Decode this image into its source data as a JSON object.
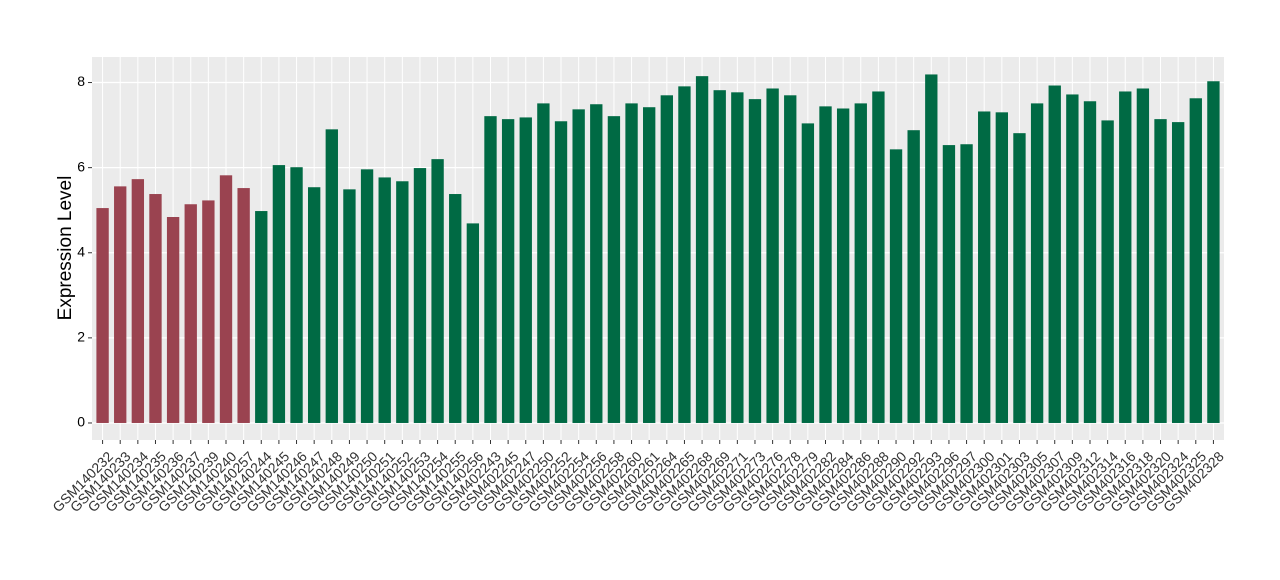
{
  "chart_data": {
    "type": "bar",
    "y_label": "Expression Level",
    "categories": [
      "GSM140232",
      "GSM140233",
      "GSM140234",
      "GSM140235",
      "GSM140236",
      "GSM140237",
      "GSM140239",
      "GSM140240",
      "GSM140257",
      "GSM140244",
      "GSM140245",
      "GSM140246",
      "GSM140247",
      "GSM140248",
      "GSM140249",
      "GSM140250",
      "GSM140251",
      "GSM140252",
      "GSM140253",
      "GSM140254",
      "GSM140255",
      "GSM140256",
      "GSM402243",
      "GSM402245",
      "GSM402247",
      "GSM402250",
      "GSM402252",
      "GSM402254",
      "GSM402256",
      "GSM402258",
      "GSM402260",
      "GSM402261",
      "GSM402264",
      "GSM402265",
      "GSM402268",
      "GSM402269",
      "GSM402271",
      "GSM402273",
      "GSM402276",
      "GSM402278",
      "GSM402279",
      "GSM402282",
      "GSM402284",
      "GSM402286",
      "GSM402288",
      "GSM402290",
      "GSM402292",
      "GSM402293",
      "GSM402296",
      "GSM402297",
      "GSM402300",
      "GSM402301",
      "GSM402303",
      "GSM402305",
      "GSM402307",
      "GSM402309",
      "GSM402312",
      "GSM402314",
      "GSM402316",
      "GSM402318",
      "GSM402320",
      "GSM402324",
      "GSM402325",
      "GSM402328"
    ],
    "values": [
      5.05,
      5.56,
      5.73,
      5.38,
      4.84,
      5.14,
      5.23,
      5.82,
      5.52,
      4.98,
      6.06,
      6.01,
      5.54,
      6.9,
      5.49,
      5.96,
      5.77,
      5.68,
      5.99,
      6.2,
      5.38,
      4.69,
      7.21,
      7.14,
      7.18,
      7.51,
      7.09,
      7.37,
      7.49,
      7.21,
      7.51,
      7.42,
      7.7,
      7.91,
      8.15,
      7.82,
      7.77,
      7.61,
      7.86,
      7.7,
      7.04,
      7.44,
      7.39,
      7.51,
      7.79,
      6.43,
      6.88,
      8.19,
      6.53,
      6.55,
      7.32,
      7.3,
      6.81,
      7.51,
      7.93,
      7.72,
      7.56,
      7.11,
      7.79,
      7.86,
      7.14,
      7.07,
      7.63,
      8.03
    ],
    "colors": [
      "#9a4350",
      "#9a4350",
      "#9a4350",
      "#9a4350",
      "#9a4350",
      "#9a4350",
      "#9a4350",
      "#9a4350",
      "#9a4350",
      "#006a44",
      "#006a44",
      "#006a44",
      "#006a44",
      "#006a44",
      "#006a44",
      "#006a44",
      "#006a44",
      "#006a44",
      "#006a44",
      "#006a44",
      "#006a44",
      "#006a44",
      "#006a44",
      "#006a44",
      "#006a44",
      "#006a44",
      "#006a44",
      "#006a44",
      "#006a44",
      "#006a44",
      "#006a44",
      "#006a44",
      "#006a44",
      "#006a44",
      "#006a44",
      "#006a44",
      "#006a44",
      "#006a44",
      "#006a44",
      "#006a44",
      "#006a44",
      "#006a44",
      "#006a44",
      "#006a44",
      "#006a44",
      "#006a44",
      "#006a44",
      "#006a44",
      "#006a44",
      "#006a44",
      "#006a44",
      "#006a44",
      "#006a44",
      "#006a44",
      "#006a44",
      "#006a44",
      "#006a44",
      "#006a44",
      "#006a44",
      "#006a44",
      "#006a44",
      "#006a44",
      "#006a44",
      "#006a44"
    ],
    "ylim": [
      -0.4,
      8.6
    ],
    "yticks": [
      0,
      2,
      4,
      6,
      8
    ],
    "grid": true
  }
}
